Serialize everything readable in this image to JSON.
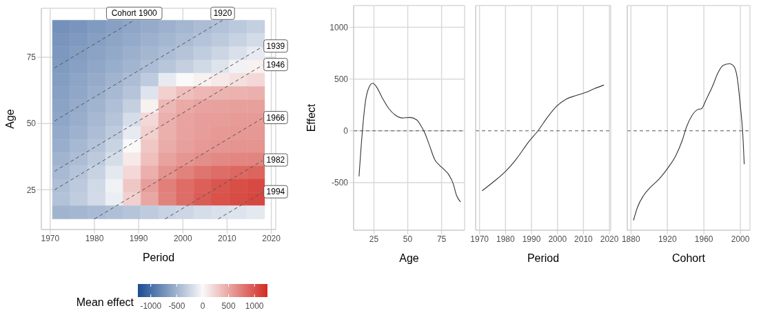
{
  "chart_data": [
    {
      "type": "heatmap",
      "xlabel": "Period",
      "ylabel": "Age",
      "clabel": "Mean effect",
      "x": [
        1972.5,
        1976.5,
        1980.5,
        1984.5,
        1988.5,
        1992.5,
        1996.5,
        2000.5,
        2004.5,
        2008.5,
        2012.5,
        2016.5
      ],
      "y": [
        86.5,
        81.5,
        76.5,
        71.5,
        66.5,
        61.5,
        56.5,
        51.5,
        46.5,
        41.5,
        36.5,
        31.5,
        26.5,
        21.5,
        16.5
      ],
      "cells": [
        [
          -750,
          -720,
          -680,
          -640,
          -600,
          -560,
          -520,
          -480,
          -440,
          -400,
          -350,
          -300
        ],
        [
          -720,
          -690,
          -650,
          -610,
          -570,
          -520,
          -480,
          -440,
          -390,
          -340,
          -280,
          -220
        ],
        [
          -700,
          -660,
          -620,
          -580,
          -530,
          -480,
          -430,
          -380,
          -320,
          -260,
          -180,
          -100
        ],
        [
          -680,
          -640,
          -590,
          -540,
          -490,
          -430,
          -370,
          -300,
          -230,
          -150,
          -50,
          50
        ],
        [
          -660,
          -610,
          -560,
          -500,
          -430,
          -330,
          -100,
          0,
          50,
          100,
          150,
          200
        ],
        [
          -640,
          -590,
          -530,
          -460,
          -380,
          -150,
          250,
          350,
          400,
          420,
          430,
          440
        ],
        [
          -620,
          -560,
          -500,
          -420,
          -300,
          50,
          400,
          480,
          520,
          530,
          540,
          540
        ],
        [
          -600,
          -540,
          -470,
          -380,
          -200,
          200,
          450,
          520,
          550,
          560,
          570,
          570
        ],
        [
          -570,
          -510,
          -430,
          -330,
          -100,
          250,
          450,
          520,
          560,
          580,
          590,
          590
        ],
        [
          -540,
          -470,
          -390,
          -270,
          0,
          300,
          470,
          540,
          580,
          600,
          610,
          610
        ],
        [
          -500,
          -430,
          -340,
          -200,
          100,
          350,
          520,
          600,
          650,
          680,
          700,
          710
        ],
        [
          -460,
          -380,
          -280,
          -120,
          200,
          450,
          620,
          720,
          800,
          850,
          880,
          900
        ],
        [
          -420,
          -340,
          -230,
          -50,
          300,
          550,
          740,
          850,
          930,
          990,
          1030,
          1060
        ],
        [
          -400,
          -320,
          -220,
          -80,
          250,
          500,
          720,
          850,
          950,
          1010,
          1050,
          1080
        ],
        [
          -500,
          -480,
          -450,
          -420,
          -380,
          -330,
          -280,
          -250,
          -200,
          -170,
          -150,
          -120
        ]
      ],
      "clim": [
        -1250,
        1250
      ],
      "cticks": [
        -1000,
        -500,
        0,
        500,
        1000
      ],
      "xlim": [
        1968,
        2021
      ],
      "xticks": [
        1970,
        1980,
        1990,
        2000,
        2010,
        2020
      ],
      "ylim": [
        10,
        93.5
      ],
      "yticks": [
        25,
        50,
        75
      ],
      "grid": true,
      "line_style": "dashed",
      "series": [
        {
          "type": "line",
          "name": "Cohort 1900",
          "color": "#555555",
          "x": [
            1971,
            1989
          ],
          "values": [
            71,
            89
          ]
        },
        {
          "type": "line",
          "name": "1920",
          "color": "#555555",
          "x": [
            1971,
            2009
          ],
          "values": [
            51,
            89
          ]
        },
        {
          "type": "line",
          "name": "1939",
          "color": "#555555",
          "x": [
            1971,
            2018
          ],
          "values": [
            32,
            79
          ]
        },
        {
          "type": "line",
          "name": "1946",
          "color": "#555555",
          "x": [
            1971,
            2018
          ],
          "values": [
            25,
            72
          ]
        },
        {
          "type": "line",
          "name": "1966",
          "color": "#555555",
          "x": [
            1980,
            2018
          ],
          "values": [
            14,
            52
          ]
        },
        {
          "type": "line",
          "name": "1982",
          "color": "#555555",
          "x": [
            1996,
            2018
          ],
          "values": [
            14,
            36
          ]
        },
        {
          "type": "line",
          "name": "1994",
          "color": "#555555",
          "x": [
            2008,
            2018
          ],
          "values": [
            14,
            24
          ]
        }
      ]
    },
    {
      "type": "line",
      "xlabel": "Age",
      "ylabel": "Effect",
      "xlim": [
        10,
        92
      ],
      "xticks": [
        25,
        50,
        75
      ],
      "ylim": [
        -960,
        1210
      ],
      "yticks": [
        -500,
        0,
        500,
        1000
      ],
      "grid": true,
      "color": "#333333",
      "x": [
        14,
        16.5,
        18.7,
        21.3,
        24.1,
        26.7,
        31,
        36,
        41,
        46,
        51.4,
        56.5,
        60,
        62.6,
        66,
        70,
        73.5,
        77,
        80,
        83.7,
        86,
        89
      ],
      "values": [
        -440,
        0,
        279,
        418,
        459,
        429,
        322,
        215,
        150,
        124,
        129,
        107,
        43,
        -21,
        -139,
        -279,
        -333,
        -375,
        -418,
        -515,
        -622,
        -687
      ],
      "ref_lines": [
        {
          "axis": "y",
          "value": 0,
          "line_style": "dashed",
          "color": "#555555"
        }
      ]
    },
    {
      "type": "line",
      "xlabel": "Period",
      "xlim": [
        1968.5,
        2020.5
      ],
      "xticks": [
        1970,
        1980,
        1990,
        2000,
        2010,
        2020
      ],
      "ylim": [
        -960,
        1210
      ],
      "yticks": [
        -500,
        0,
        500,
        1000
      ],
      "grid": true,
      "tick_labels": "x",
      "color": "#333333",
      "x": [
        1971,
        1975.3,
        1979.8,
        1984.3,
        1988.9,
        1992.5,
        1996.1,
        1999.8,
        2003.4,
        2007,
        2010.7,
        2014.3,
        2017.9
      ],
      "values": [
        -579,
        -494,
        -397,
        -268,
        -107,
        0,
        129,
        240,
        307,
        339,
        369,
        408,
        442
      ],
      "ref_lines": [
        {
          "axis": "y",
          "value": 0,
          "line_style": "dashed",
          "color": "#555555"
        }
      ]
    },
    {
      "type": "line",
      "xlabel": "Cohort",
      "xlim": [
        1876,
        2010.5
      ],
      "xticks": [
        1880,
        1920,
        1960,
        2000
      ],
      "ylim": [
        -960,
        1210
      ],
      "yticks": [
        -500,
        0,
        500,
        1000
      ],
      "grid": true,
      "tick_labels": "x",
      "color": "#333333",
      "x": [
        1882.8,
        1887.1,
        1894.1,
        1901.2,
        1910.6,
        1920,
        1929.4,
        1936.5,
        1941.2,
        1947.1,
        1953,
        1957.6,
        1962.4,
        1969.4,
        1975.3,
        1981.2,
        1988.2,
        1992.9,
        1996.5,
        2000,
        2002.4,
        2004.2
      ],
      "values": [
        -865,
        -740,
        -622,
        -547,
        -468,
        -365,
        -236,
        -86,
        43,
        150,
        204,
        215,
        300,
        429,
        558,
        633,
        648,
        622,
        515,
        236,
        0,
        -322
      ],
      "ref_lines": [
        {
          "axis": "y",
          "value": 0,
          "line_style": "dashed",
          "color": "#555555"
        }
      ]
    }
  ]
}
